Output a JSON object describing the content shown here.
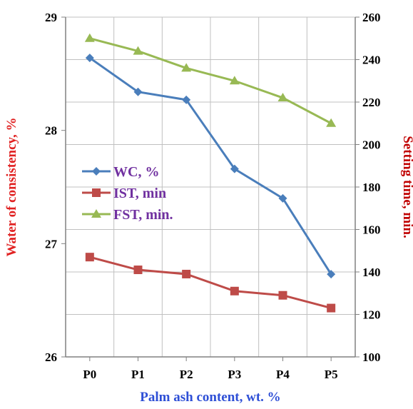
{
  "chart_data": {
    "type": "line",
    "categories": [
      "P0",
      "P1",
      "P2",
      "P3",
      "P4",
      "P5"
    ],
    "xlabel": "Palm ash content, wt. %",
    "ylabel_left": "Water of consistency, %",
    "ylabel_right": "Setting time, min.",
    "y_left": {
      "lim": [
        26,
        29
      ],
      "ticks": [
        "26",
        "27",
        "28",
        "29"
      ]
    },
    "y_right": {
      "lim": [
        100,
        260
      ],
      "ticks": [
        "100",
        "120",
        "140",
        "160",
        "180",
        "200",
        "220",
        "240",
        "260"
      ]
    },
    "grid": true,
    "legend_position": "center-left",
    "series": [
      {
        "name": "WC, %",
        "axis": "left",
        "color": "#4a7ebb",
        "marker": "diamond",
        "values": [
          28.64,
          28.34,
          28.27,
          27.66,
          27.4,
          26.73
        ]
      },
      {
        "name": "IST, min",
        "axis": "right",
        "color": "#be4b48",
        "marker": "square",
        "values": [
          147,
          141,
          139,
          131,
          129,
          123
        ]
      },
      {
        "name": "FST, min.",
        "axis": "right",
        "color": "#98b954",
        "marker": "triangle",
        "values": [
          250,
          244,
          236,
          230,
          222,
          210
        ]
      }
    ],
    "colors": {
      "left_title": "#e02020",
      "right_title": "#c00000",
      "x_title": "#2e4fd6",
      "legend_text": "#7030a0",
      "grid": "#c0c0c0",
      "axis": "#808080"
    }
  }
}
